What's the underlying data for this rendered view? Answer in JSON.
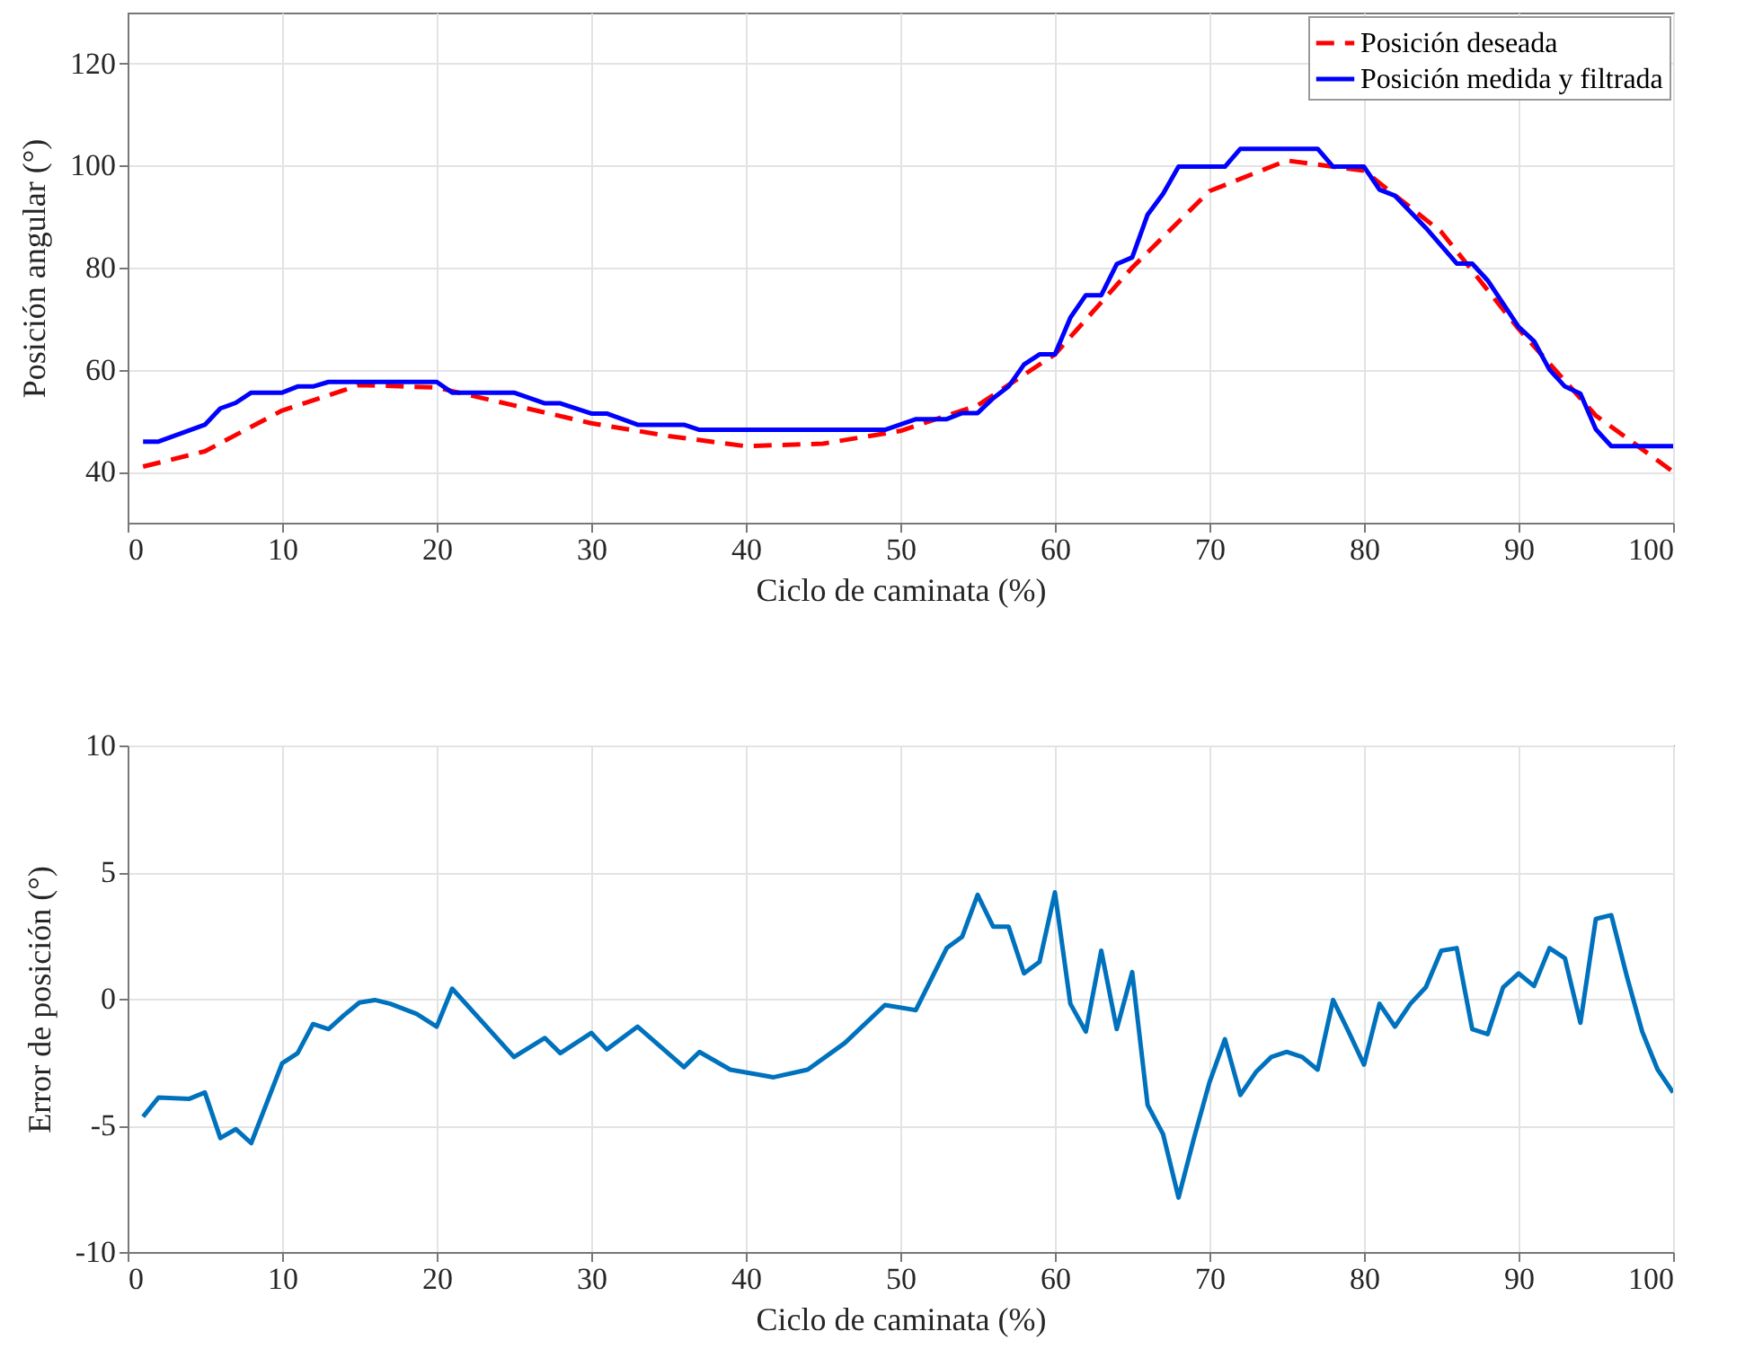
{
  "chart_data": [
    {
      "type": "line",
      "xlabel": "Ciclo de caminata (%)",
      "ylabel": "Posición angular (°)",
      "xlim": [
        0,
        100
      ],
      "xticks": [
        0,
        10,
        20,
        30,
        40,
        50,
        60,
        70,
        80,
        90,
        100
      ],
      "ylim": [
        30,
        130
      ],
      "yticks": [
        40,
        60,
        80,
        100,
        120
      ],
      "grid": true,
      "legend": "top right",
      "series": [
        {
          "name": "Posición deseada",
          "color": "#ff0000",
          "line_style": "dashed",
          "x": [
            1,
            5,
            10,
            15,
            20,
            25,
            30,
            35,
            40,
            45,
            50,
            55,
            60,
            65,
            70,
            75,
            80,
            85,
            90,
            95,
            100
          ],
          "values": [
            41,
            44,
            52,
            57,
            56.5,
            53,
            49.5,
            47,
            45,
            45.5,
            48,
            53,
            63,
            80,
            95,
            101,
            99,
            87,
            68,
            51,
            40
          ]
        },
        {
          "name": "Posición medida y filtrada",
          "color": "#0000ff",
          "line_style": "solid",
          "x": [
            1,
            2,
            5,
            6,
            7,
            8,
            10,
            11,
            12,
            13,
            20,
            21,
            25,
            27,
            28,
            30,
            31,
            33,
            36,
            37,
            49,
            51,
            53,
            54,
            55,
            56,
            57,
            58,
            59,
            60,
            61,
            62,
            63,
            64,
            65,
            66,
            67,
            68,
            71,
            72,
            77,
            78,
            80,
            81,
            82,
            84,
            86,
            87,
            88,
            90,
            91,
            92,
            93,
            94,
            95,
            96,
            100
          ],
          "values": [
            45.9,
            45.9,
            49.2,
            52.4,
            53.5,
            55.5,
            55.5,
            56.7,
            56.7,
            57.6,
            57.6,
            55.5,
            55.5,
            53.4,
            53.4,
            51.4,
            51.4,
            49.2,
            49.2,
            48.2,
            48.2,
            50.3,
            50.3,
            51.5,
            51.5,
            54.4,
            56.7,
            61,
            63,
            63,
            70.2,
            74.6,
            74.6,
            80.7,
            82,
            90.4,
            94.5,
            99.8,
            99.8,
            103.3,
            103.3,
            99.8,
            99.8,
            95.3,
            94.1,
            87.8,
            80.8,
            80.8,
            77.5,
            68.4,
            65.6,
            60,
            56.7,
            55.3,
            48.3,
            45,
            45
          ]
        }
      ]
    },
    {
      "type": "line",
      "xlabel": "Ciclo de caminata (%)",
      "ylabel": "Error de posición (°)",
      "xlim": [
        0,
        100
      ],
      "xticks": [
        0,
        10,
        20,
        30,
        40,
        50,
        60,
        70,
        80,
        90,
        100
      ],
      "ylim": [
        -10,
        10
      ],
      "yticks": [
        -10,
        -5,
        0,
        5,
        10
      ],
      "grid": true,
      "series": [
        {
          "color": "#0072bd",
          "line_style": "solid",
          "x": [
            1,
            2,
            4,
            5,
            6,
            7,
            8,
            10,
            11,
            12,
            13,
            14,
            15,
            16,
            17,
            18.7,
            20,
            21,
            25,
            27,
            28,
            30,
            31,
            33,
            36,
            37,
            39,
            41.8,
            44,
            46.4,
            49,
            51,
            53,
            54,
            55,
            56,
            57,
            58,
            59,
            60,
            61,
            62,
            63,
            64,
            65,
            66,
            67,
            68,
            69,
            70,
            71,
            72,
            73,
            74,
            75,
            76,
            77,
            78,
            79,
            80,
            81,
            82,
            83,
            84,
            85,
            86,
            87,
            88,
            89,
            90,
            91,
            92,
            93,
            94,
            95,
            96,
            97,
            98,
            99,
            100
          ],
          "values": [
            -4.66,
            -3.9,
            -3.95,
            -3.7,
            -5.5,
            -5.15,
            -5.7,
            -2.55,
            -2.15,
            -1.0,
            -1.2,
            -0.65,
            -0.15,
            -0.05,
            -0.2,
            -0.6,
            -1.1,
            0.4,
            -2.3,
            -1.55,
            -2.15,
            -1.35,
            -2.0,
            -1.1,
            -2.7,
            -2.1,
            -2.8,
            -3.1,
            -2.8,
            -1.75,
            -0.25,
            -0.45,
            2.0,
            2.45,
            4.1,
            2.85,
            2.85,
            1.0,
            1.45,
            4.2,
            -0.2,
            -1.3,
            1.9,
            -1.2,
            1.05,
            -4.2,
            -5.35,
            -7.85,
            -5.5,
            -3.3,
            -1.6,
            -3.8,
            -2.9,
            -2.3,
            -2.1,
            -2.3,
            -2.8,
            -0.05,
            -1.3,
            -2.6,
            -0.2,
            -1.1,
            -0.2,
            0.45,
            1.9,
            2.0,
            -1.2,
            -1.4,
            0.45,
            1.0,
            0.5,
            2.0,
            1.6,
            -0.95,
            3.15,
            3.3,
            0.9,
            -1.3,
            -2.8,
            -3.7
          ]
        }
      ]
    }
  ]
}
